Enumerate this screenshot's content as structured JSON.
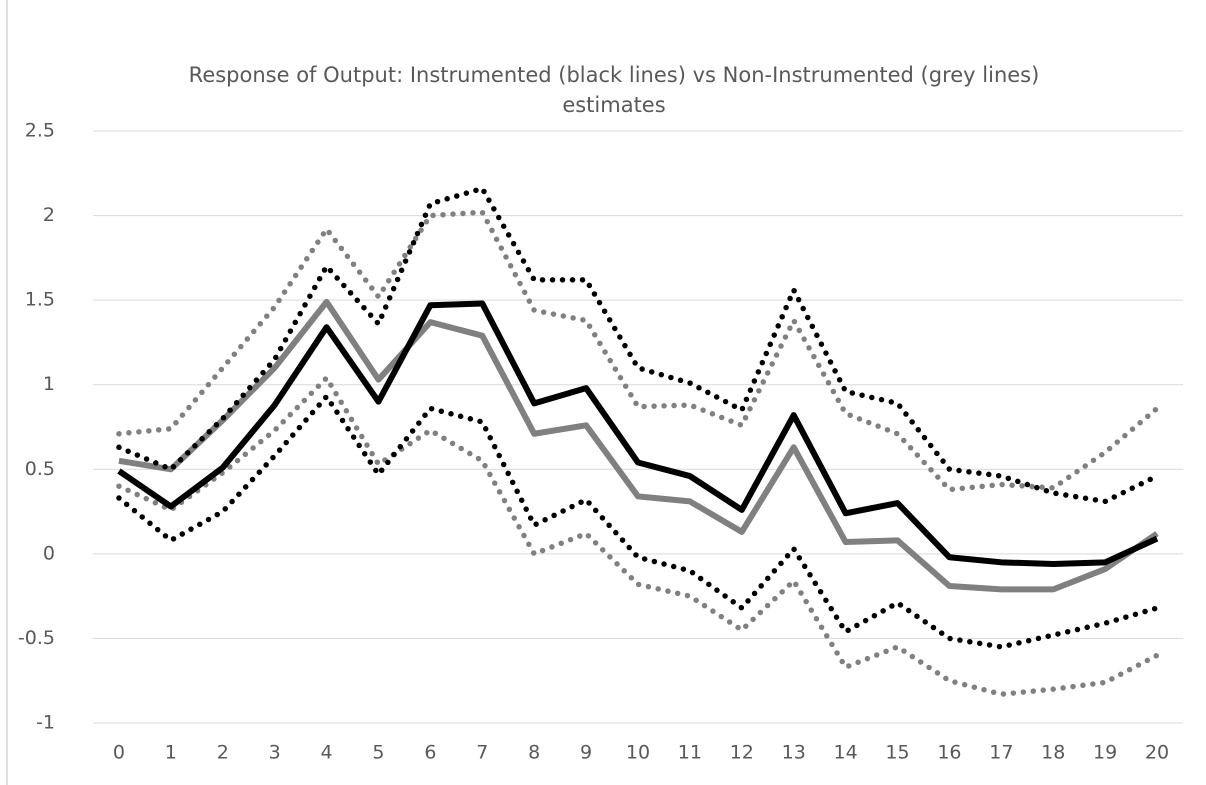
{
  "chart_data": {
    "type": "line",
    "title": "Response of Output: Instrumented (black lines) vs Non-Instrumented (grey lines) estimates",
    "categories": [
      "0",
      "1",
      "2",
      "3",
      "4",
      "5",
      "6",
      "7",
      "8",
      "9",
      "10",
      "11",
      "12",
      "13",
      "14",
      "15",
      "16",
      "17",
      "18",
      "19",
      "20"
    ],
    "ylim": [
      -1,
      2.5
    ],
    "yticks": [
      2.5,
      2,
      1.5,
      1,
      0.5,
      0,
      -0.5,
      -1
    ],
    "grid": true,
    "series": [
      {
        "color": "#808080",
        "dash": "dotted",
        "values": [
          0.71,
          0.74,
          1.1,
          1.46,
          1.92,
          1.52,
          2.0,
          2.02,
          1.44,
          1.38,
          0.87,
          0.88,
          0.76,
          1.38,
          0.83,
          0.71,
          0.38,
          0.41,
          0.39,
          0.6,
          0.86
        ]
      },
      {
        "color": "#808080",
        "dash": "dotted",
        "values": [
          0.4,
          0.26,
          0.48,
          0.73,
          1.04,
          0.53,
          0.73,
          0.55,
          0.0,
          0.12,
          -0.18,
          -0.25,
          -0.45,
          -0.16,
          -0.67,
          -0.55,
          -0.75,
          -0.83,
          -0.8,
          -0.76,
          -0.6
        ]
      },
      {
        "color": "#808080",
        "dash": "solid",
        "values": [
          0.55,
          0.5,
          0.79,
          1.1,
          1.49,
          1.03,
          1.37,
          1.29,
          0.71,
          0.76,
          0.34,
          0.31,
          0.13,
          0.63,
          0.07,
          0.08,
          -0.19,
          -0.21,
          -0.21,
          -0.09,
          0.12
        ]
      },
      {
        "color": "#000000",
        "dash": "dotted",
        "values": [
          0.63,
          0.5,
          0.8,
          1.15,
          1.7,
          1.36,
          2.07,
          2.16,
          1.62,
          1.62,
          1.1,
          1.01,
          0.85,
          1.56,
          0.96,
          0.89,
          0.5,
          0.46,
          0.36,
          0.31,
          0.46
        ]
      },
      {
        "color": "#000000",
        "dash": "dotted",
        "values": [
          0.33,
          0.08,
          0.25,
          0.58,
          0.93,
          0.47,
          0.86,
          0.78,
          0.17,
          0.32,
          -0.02,
          -0.1,
          -0.32,
          0.03,
          -0.46,
          -0.29,
          -0.5,
          -0.55,
          -0.48,
          -0.41,
          -0.32
        ]
      },
      {
        "color": "#000000",
        "dash": "solid",
        "values": [
          0.49,
          0.28,
          0.51,
          0.88,
          1.34,
          0.9,
          1.47,
          1.48,
          0.89,
          0.98,
          0.54,
          0.46,
          0.26,
          0.82,
          0.24,
          0.3,
          -0.02,
          -0.05,
          -0.06,
          -0.05,
          0.09
        ]
      }
    ]
  }
}
